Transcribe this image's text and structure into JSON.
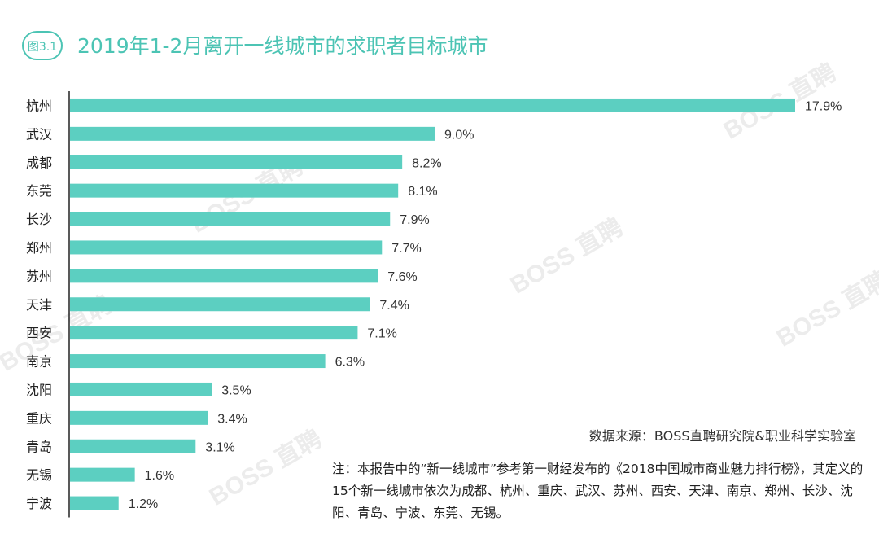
{
  "header": {
    "figure_label": "图3.1",
    "title": "2019年1-2月离开一线城市的求职者目标城市"
  },
  "chart_data": {
    "type": "bar",
    "orientation": "horizontal",
    "categories": [
      "杭州",
      "武汉",
      "成都",
      "东莞",
      "长沙",
      "郑州",
      "苏州",
      "天津",
      "西安",
      "南京",
      "沈阳",
      "重庆",
      "青岛",
      "无锡",
      "宁波"
    ],
    "values": [
      17.9,
      9.0,
      8.2,
      8.1,
      7.9,
      7.7,
      7.6,
      7.4,
      7.1,
      6.3,
      3.5,
      3.4,
      3.1,
      1.6,
      1.2
    ],
    "labels": [
      "17.9%",
      "9.0%",
      "8.2%",
      "8.1%",
      "7.9%",
      "7.7%",
      "7.6%",
      "7.4%",
      "7.1%",
      "6.3%",
      "3.5%",
      "3.4%",
      "3.1%",
      "1.6%",
      "1.2%"
    ],
    "xlim": [
      0,
      17.9
    ],
    "bar_color": "#5ccfc1",
    "grid": false
  },
  "watermark": "BOSS 直聘",
  "source": "数据来源：BOSS直聘研究院&职业科学实验室",
  "note": "注：本报告中的“新一线城市”参考第一财经发布的《2018中国城市商业魅力排行榜》，其定义的15个新一线城市依次为成都、杭州、重庆、武汉、苏州、西安、天津、南京、郑州、长沙、沈阳、青岛、宁波、东莞、无锡。",
  "colors": {
    "accent": "#4cc4b4",
    "axis": "#222222"
  }
}
